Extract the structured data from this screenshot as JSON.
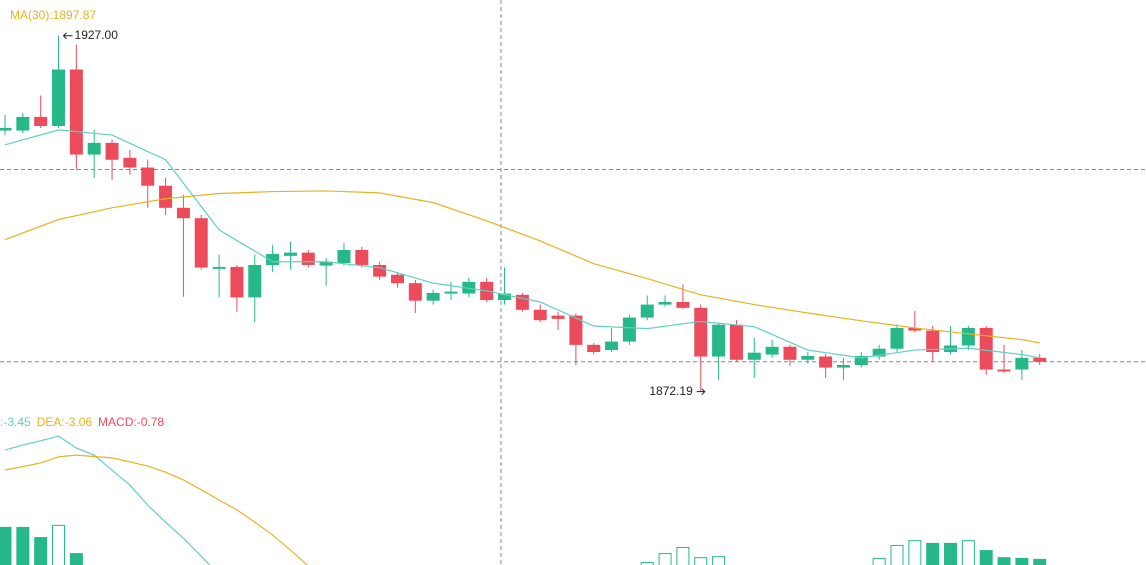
{
  "chart_data": [
    {
      "type": "candlestick",
      "open": [
        1912.4,
        1912.4,
        1914.5,
        1913.1,
        1921.8,
        1908.7,
        1910.5,
        1908.2,
        1906.7,
        1903.9,
        1900.5,
        1898.9,
        1891.1,
        1891.4,
        1886.7,
        1891.7,
        1893.1,
        1893.6,
        1891.6,
        1892.0,
        1894.0,
        1891.7,
        1890.2,
        1888.9,
        1886.2,
        1887.3,
        1887.3,
        1889.1,
        1886.3,
        1887.1,
        1884.8,
        1883.9,
        1883.9,
        1879.4,
        1878.6,
        1879.9,
        1883.6,
        1885.6,
        1886.0,
        1885.1,
        1877.6,
        1882.5,
        1877.1,
        1877.9,
        1879.1,
        1877.1,
        1877.6,
        1875.9,
        1876.3,
        1877.6,
        1878.8,
        1882.0,
        1881.6,
        1878.3,
        1879.3,
        1882.0,
        1875.6,
        1875.6,
        1877.4
      ],
      "close": [
        1912.8,
        1914.5,
        1913.1,
        1921.8,
        1908.7,
        1910.5,
        1907.9,
        1906.7,
        1903.9,
        1900.5,
        1898.9,
        1891.3,
        1891.4,
        1886.7,
        1891.7,
        1893.4,
        1893.6,
        1891.7,
        1892.2,
        1894.0,
        1891.7,
        1889.9,
        1888.9,
        1886.2,
        1887.4,
        1887.6,
        1889.1,
        1886.3,
        1887.3,
        1884.8,
        1883.2,
        1883.4,
        1879.4,
        1878.3,
        1879.9,
        1883.6,
        1885.6,
        1886.0,
        1885.1,
        1877.6,
        1882.5,
        1877.1,
        1878.2,
        1879.1,
        1877.1,
        1877.7,
        1875.9,
        1876.3,
        1877.7,
        1878.8,
        1882.0,
        1881.6,
        1878.3,
        1879.3,
        1882.0,
        1875.6,
        1875.3,
        1877.4,
        1876.8
      ],
      "high": [
        1914.8,
        1915.1,
        1917.8,
        1927.0,
        1925.6,
        1912.5,
        1911.0,
        1909.4,
        1907.9,
        1905.1,
        1902.5,
        1899.4,
        1893.3,
        1891.7,
        1893.3,
        1894.8,
        1895.3,
        1894.0,
        1892.8,
        1895.1,
        1894.5,
        1892.2,
        1890.6,
        1889.4,
        1887.9,
        1889.1,
        1889.7,
        1889.7,
        1891.3,
        1887.4,
        1885.6,
        1884.5,
        1884.2,
        1879.7,
        1882.0,
        1884.0,
        1887.0,
        1887.0,
        1888.7,
        1885.6,
        1882.8,
        1883.2,
        1880.5,
        1880.2,
        1879.4,
        1878.3,
        1878.0,
        1877.4,
        1878.3,
        1879.4,
        1882.6,
        1884.6,
        1882.3,
        1882.3,
        1882.3,
        1882.3,
        1879.4,
        1878.6,
        1878.0
      ],
      "low": [
        1911.7,
        1912.0,
        1912.8,
        1912.8,
        1906.4,
        1905.1,
        1904.8,
        1905.6,
        1900.5,
        1899.4,
        1886.8,
        1891.0,
        1886.7,
        1884.5,
        1882.9,
        1890.6,
        1891.0,
        1891.3,
        1888.5,
        1891.6,
        1891.3,
        1889.4,
        1888.2,
        1884.3,
        1885.6,
        1886.3,
        1886.7,
        1886.0,
        1885.6,
        1884.5,
        1882.9,
        1881.7,
        1876.3,
        1877.9,
        1878.3,
        1879.4,
        1883.2,
        1885.3,
        1884.9,
        1872.19,
        1874.0,
        1876.8,
        1874.3,
        1877.4,
        1876.2,
        1876.5,
        1874.3,
        1874.0,
        1875.9,
        1877.1,
        1878.3,
        1881.3,
        1876.8,
        1877.9,
        1878.6,
        1874.8,
        1875.1,
        1874.0,
        1876.3
      ],
      "up_color": "#27b88a",
      "down_color": "#eb4b5b",
      "ylim": [
        1845.5,
        1932.5
      ],
      "grid_y": [
        1906.4,
        1876.8
      ],
      "grid_x": [
        27.8
      ],
      "lines": [
        {
          "color": "#62cfc4",
          "x": [
            0,
            3,
            6,
            9,
            12,
            15,
            18,
            21,
            24,
            27,
            30,
            33,
            36,
            39,
            42,
            45,
            48,
            51,
            54,
            57,
            58
          ],
          "values": [
            1910.2,
            1912.5,
            1911.7,
            1907.9,
            1897.1,
            1892.2,
            1892.2,
            1891.3,
            1888.9,
            1887.7,
            1886.0,
            1882.3,
            1881.9,
            1883.0,
            1882.2,
            1878.6,
            1877.4,
            1878.6,
            1878.9,
            1877.9,
            1877.4
          ]
        },
        {
          "name": "MA(30):1897.87",
          "color": "#e6b422",
          "x": [
            0,
            3,
            6,
            9,
            12,
            15,
            18,
            21,
            24,
            27,
            30,
            33,
            36,
            39,
            42,
            45,
            48,
            51,
            54,
            57,
            58
          ],
          "values": [
            1895.6,
            1898.7,
            1900.5,
            1901.9,
            1902.7,
            1903.0,
            1903.1,
            1902.8,
            1901.3,
            1898.5,
            1895.4,
            1891.9,
            1889.6,
            1887.1,
            1885.6,
            1884.3,
            1883.1,
            1882.0,
            1881.1,
            1880.2,
            1879.7
          ]
        }
      ],
      "annotations": [
        {
          "label": "1927.00",
          "x": 3,
          "y": 1927.0,
          "side": "right"
        },
        {
          "label": "1872.19",
          "x": 39,
          "y": 1872.19,
          "side": "left"
        }
      ]
    },
    {
      "type": "macd",
      "ylim": [
        1.03,
        5.44
      ],
      "lines": [
        {
          "name": ":-3.45",
          "color": "#62cfc4",
          "x": [
            0,
            1,
            2,
            3,
            4,
            5,
            6,
            7,
            8,
            9,
            10,
            11,
            12
          ],
          "values": [
            4.41,
            4.56,
            4.68,
            4.82,
            4.47,
            4.26,
            3.82,
            3.38,
            2.79,
            2.29,
            1.82,
            1.29,
            0.74
          ]
        },
        {
          "name": "DEA:-3.06",
          "color": "#e6b422",
          "x": [
            0,
            2,
            3,
            4,
            6,
            8,
            9,
            10,
            11,
            12,
            13,
            14,
            15,
            16,
            17
          ],
          "values": [
            3.82,
            4.03,
            4.21,
            4.26,
            4.18,
            3.94,
            3.76,
            3.53,
            3.24,
            2.94,
            2.65,
            2.29,
            1.91,
            1.47,
            1.0
          ]
        }
      ],
      "histogram": {
        "name": "MACD:-0.78",
        "name_color": "#eb4b5b",
        "color": "#27b88a",
        "x": [
          0,
          1,
          2,
          3,
          4,
          36,
          37,
          38,
          39,
          40,
          49,
          50,
          51,
          52,
          53,
          54,
          55,
          56,
          57,
          58
        ],
        "values": [
          2.15,
          2.15,
          1.85,
          2.21,
          1.38,
          1.12,
          1.38,
          1.56,
          1.26,
          1.29,
          1.24,
          1.62,
          1.76,
          1.68,
          1.68,
          1.76,
          1.47,
          1.26,
          1.24,
          1.21
        ],
        "hollow": [
          false,
          false,
          false,
          true,
          false,
          true,
          true,
          true,
          true,
          true,
          true,
          true,
          true,
          false,
          false,
          true,
          false,
          false,
          false,
          false
        ]
      }
    }
  ]
}
